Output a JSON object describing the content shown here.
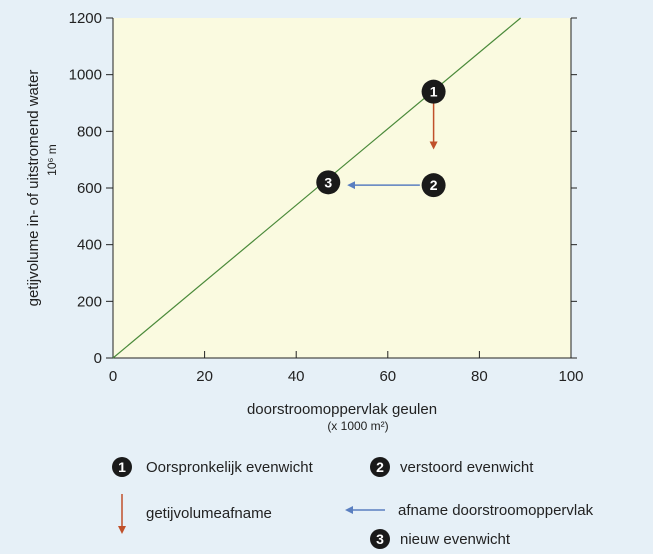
{
  "chart_data": {
    "type": "line",
    "xlabel": "doorstroomoppervlak geulen",
    "xlabel_unit": "(x 1000 m²)",
    "ylabel": "getijvolume in- of uitstromend water",
    "ylabel_unit": "10⁶ m",
    "xlim": [
      0,
      100
    ],
    "ylim": [
      0,
      1200
    ],
    "x_ticks": [
      0,
      20,
      40,
      60,
      80,
      100
    ],
    "y_ticks": [
      0,
      200,
      400,
      600,
      800,
      1000,
      1200
    ],
    "grid": false,
    "line": {
      "x": [
        0,
        89
      ],
      "y": [
        0,
        1200
      ],
      "color": "#4a8a3a"
    },
    "points": [
      {
        "label": "1",
        "x": 70,
        "y": 940
      },
      {
        "label": "2",
        "x": 70,
        "y": 610
      },
      {
        "label": "3",
        "x": 47,
        "y": 620
      }
    ],
    "arrows": [
      {
        "name": "getijvolumeafname",
        "from": [
          70,
          900
        ],
        "to": [
          70,
          750
        ],
        "color": "#c0502a"
      },
      {
        "name": "afname doorstroomoppervlak",
        "from": [
          67,
          610
        ],
        "to": [
          52,
          610
        ],
        "color": "#5a7fc0"
      }
    ],
    "plot_background": "#fafae0",
    "marker_color": "#1a1a1a"
  },
  "legend": {
    "items": [
      {
        "marker": "1",
        "label": "Oorspronkelijk evenwicht"
      },
      {
        "marker": "2",
        "label": "verstoord evenwicht"
      },
      {
        "arrow": "down-red",
        "label": "getijvolumeafname"
      },
      {
        "arrow": "left-blue",
        "label": "afname doorstroomoppervlak"
      },
      {
        "marker": "3",
        "label": "nieuw evenwicht"
      }
    ]
  }
}
